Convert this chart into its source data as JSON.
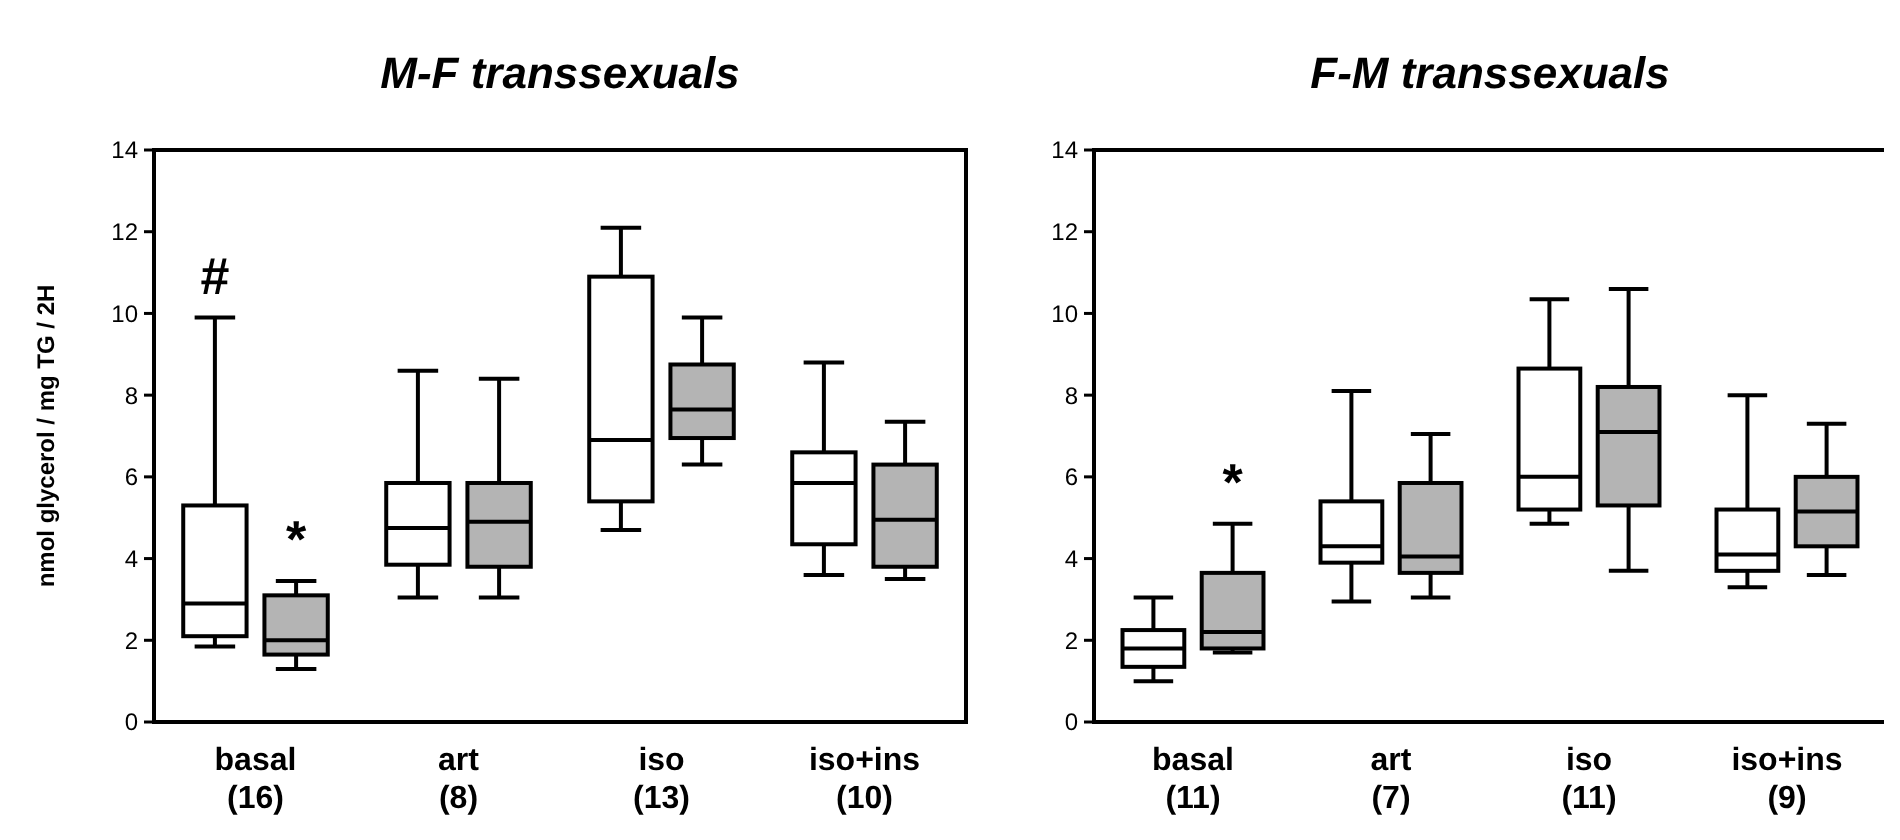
{
  "chart_data": [
    {
      "type": "box",
      "title": "M-F transsexuals",
      "ylabel": "nmol glycerol / mg TG / 2H",
      "categories": [
        "basal\n(16)",
        "art\n(8)",
        "iso\n(13)",
        "iso+ins\n(10)"
      ],
      "ylim": [
        0,
        14
      ],
      "yticks": [
        0,
        2,
        4,
        6,
        8,
        10,
        12,
        14
      ],
      "grid": false,
      "series": [
        {
          "color": "#ffffff",
          "boxes": [
            {
              "low": 1.85,
              "q1": 2.1,
              "median": 2.9,
              "q3": 5.3,
              "high": 9.9
            },
            {
              "low": 3.05,
              "q1": 3.85,
              "median": 4.75,
              "q3": 5.85,
              "high": 8.6
            },
            {
              "low": 4.7,
              "q1": 5.4,
              "median": 6.9,
              "q3": 10.9,
              "high": 12.1
            },
            {
              "low": 3.6,
              "q1": 4.35,
              "median": 5.85,
              "q3": 6.6,
              "high": 8.8
            }
          ]
        },
        {
          "color": "#b4b4b4",
          "boxes": [
            {
              "low": 1.3,
              "q1": 1.65,
              "median": 2.0,
              "q3": 3.1,
              "high": 3.45
            },
            {
              "low": 3.05,
              "q1": 3.8,
              "median": 4.9,
              "q3": 5.85,
              "high": 8.4
            },
            {
              "low": 6.3,
              "q1": 6.95,
              "median": 7.65,
              "q3": 8.75,
              "high": 9.9
            },
            {
              "low": 3.5,
              "q1": 3.8,
              "median": 4.95,
              "q3": 6.3,
              "high": 7.35
            }
          ]
        }
      ],
      "annotations": [
        "#",
        "*"
      ]
    },
    {
      "type": "box",
      "title": "F-M transsexuals",
      "categories": [
        "basal\n(11)",
        "art\n(7)",
        "iso\n(11)",
        "iso+ins\n(9)"
      ],
      "ylim": [
        0,
        14
      ],
      "yticks": [
        0,
        2,
        4,
        6,
        8,
        10,
        12,
        14
      ],
      "grid": false,
      "series": [
        {
          "color": "#ffffff",
          "boxes": [
            {
              "low": 1.0,
              "q1": 1.35,
              "median": 1.8,
              "q3": 2.25,
              "high": 3.05
            },
            {
              "low": 2.95,
              "q1": 3.9,
              "median": 4.3,
              "q3": 5.4,
              "high": 8.1
            },
            {
              "low": 4.85,
              "q1": 5.2,
              "median": 6.0,
              "q3": 8.65,
              "high": 10.35
            },
            {
              "low": 3.3,
              "q1": 3.7,
              "median": 4.1,
              "q3": 5.2,
              "high": 8.0
            }
          ]
        },
        {
          "color": "#b4b4b4",
          "boxes": [
            {
              "low": 1.7,
              "q1": 1.8,
              "median": 2.2,
              "q3": 3.65,
              "high": 4.85
            },
            {
              "low": 3.05,
              "q1": 3.65,
              "median": 4.05,
              "q3": 5.85,
              "high": 7.05
            },
            {
              "low": 3.7,
              "q1": 5.3,
              "median": 7.1,
              "q3": 8.2,
              "high": 10.6
            },
            {
              "low": 3.6,
              "q1": 4.3,
              "median": 5.15,
              "q3": 6.0,
              "high": 7.3
            }
          ]
        }
      ],
      "annotations": [
        "*"
      ]
    }
  ]
}
